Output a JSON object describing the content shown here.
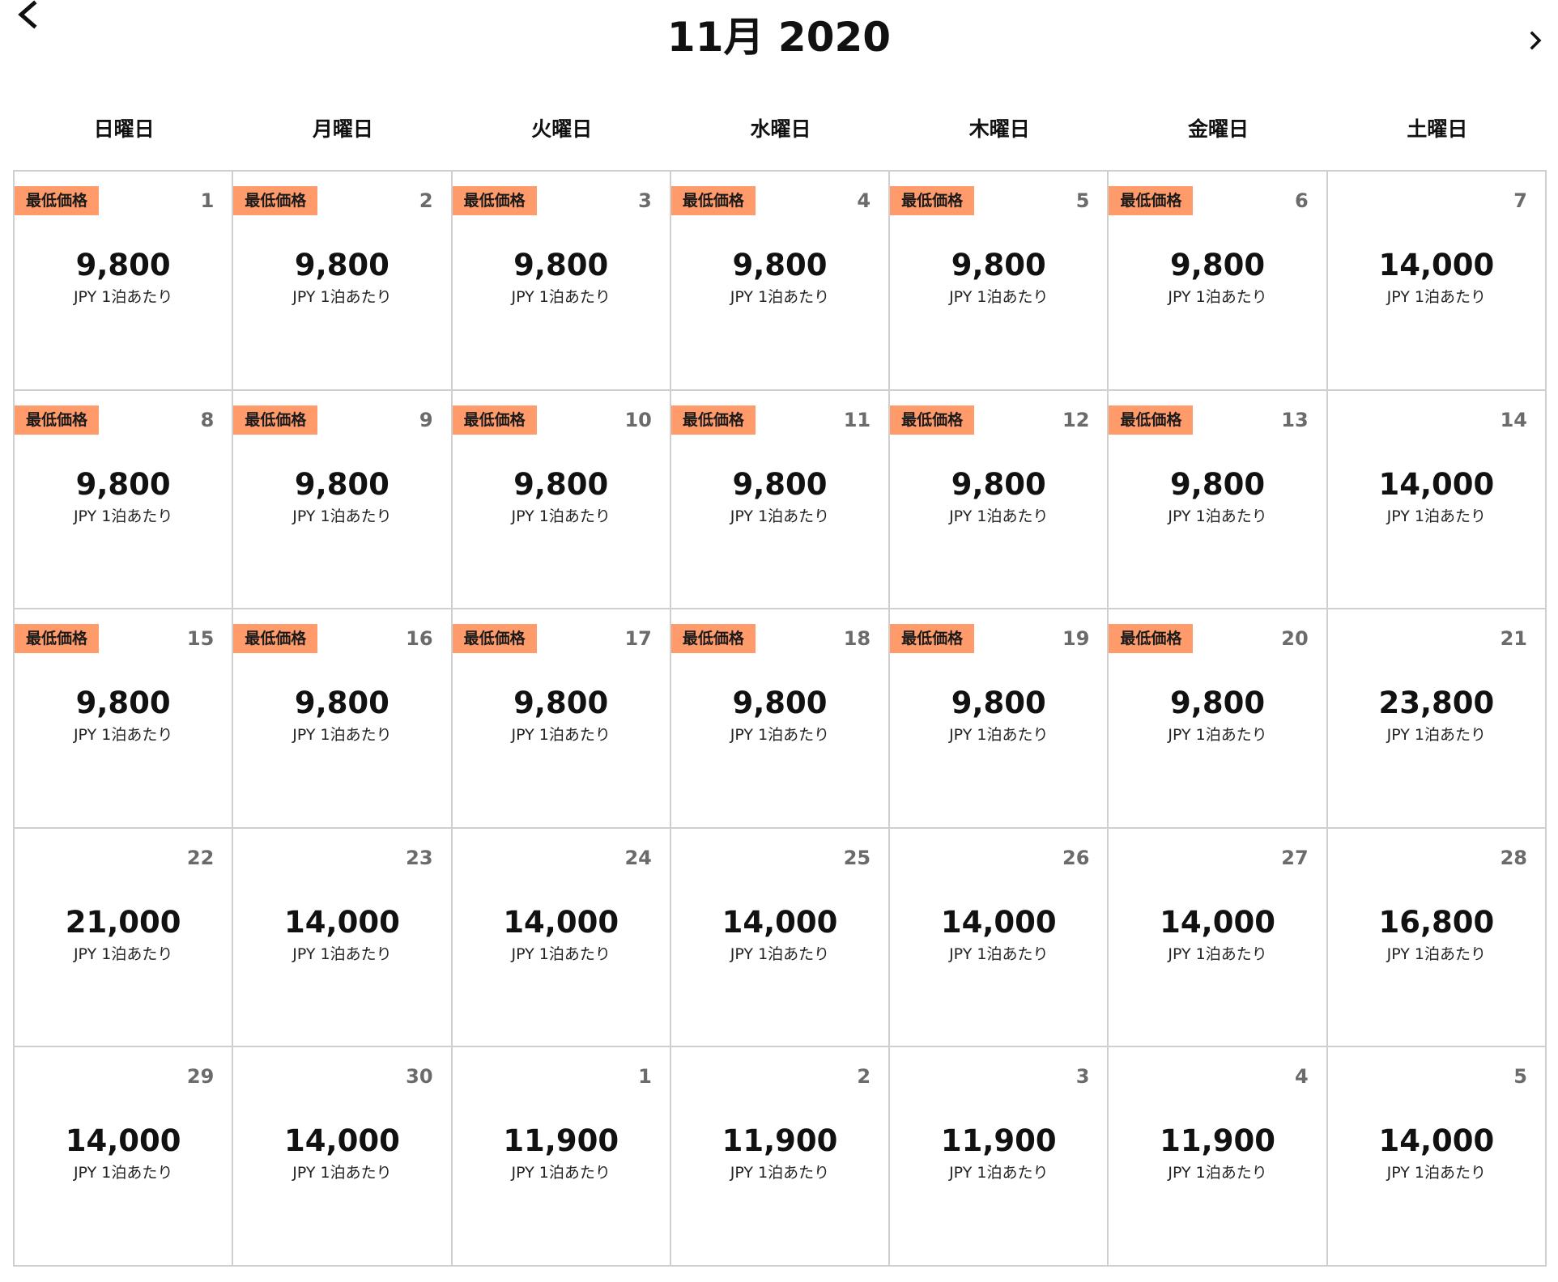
{
  "header": {
    "title": "11月 2020",
    "prev_icon": "chevron-left-icon",
    "next_icon": "chevron-right-icon"
  },
  "weekdays": [
    "日曜日",
    "月曜日",
    "火曜日",
    "水曜日",
    "木曜日",
    "金曜日",
    "土曜日"
  ],
  "colors": {
    "badge_bg": "#ff9a6b",
    "grid_line": "#cfcfcf",
    "day_number": "#6b6b6b"
  },
  "unit_label": "JPY 1泊あたり",
  "badge_label": "最低価格",
  "weeks": [
    [
      {
        "day": "1",
        "price": "9,800",
        "lowest": true
      },
      {
        "day": "2",
        "price": "9,800",
        "lowest": true
      },
      {
        "day": "3",
        "price": "9,800",
        "lowest": true
      },
      {
        "day": "4",
        "price": "9,800",
        "lowest": true
      },
      {
        "day": "5",
        "price": "9,800",
        "lowest": true
      },
      {
        "day": "6",
        "price": "9,800",
        "lowest": true
      },
      {
        "day": "7",
        "price": "14,000",
        "lowest": false
      }
    ],
    [
      {
        "day": "8",
        "price": "9,800",
        "lowest": true
      },
      {
        "day": "9",
        "price": "9,800",
        "lowest": true
      },
      {
        "day": "10",
        "price": "9,800",
        "lowest": true
      },
      {
        "day": "11",
        "price": "9,800",
        "lowest": true
      },
      {
        "day": "12",
        "price": "9,800",
        "lowest": true
      },
      {
        "day": "13",
        "price": "9,800",
        "lowest": true
      },
      {
        "day": "14",
        "price": "14,000",
        "lowest": false
      }
    ],
    [
      {
        "day": "15",
        "price": "9,800",
        "lowest": true
      },
      {
        "day": "16",
        "price": "9,800",
        "lowest": true
      },
      {
        "day": "17",
        "price": "9,800",
        "lowest": true
      },
      {
        "day": "18",
        "price": "9,800",
        "lowest": true
      },
      {
        "day": "19",
        "price": "9,800",
        "lowest": true
      },
      {
        "day": "20",
        "price": "9,800",
        "lowest": true
      },
      {
        "day": "21",
        "price": "23,800",
        "lowest": false
      }
    ],
    [
      {
        "day": "22",
        "price": "21,000",
        "lowest": false
      },
      {
        "day": "23",
        "price": "14,000",
        "lowest": false
      },
      {
        "day": "24",
        "price": "14,000",
        "lowest": false
      },
      {
        "day": "25",
        "price": "14,000",
        "lowest": false
      },
      {
        "day": "26",
        "price": "14,000",
        "lowest": false
      },
      {
        "day": "27",
        "price": "14,000",
        "lowest": false
      },
      {
        "day": "28",
        "price": "16,800",
        "lowest": false
      }
    ],
    [
      {
        "day": "29",
        "price": "14,000",
        "lowest": false
      },
      {
        "day": "30",
        "price": "14,000",
        "lowest": false
      },
      {
        "day": "1",
        "price": "11,900",
        "lowest": false
      },
      {
        "day": "2",
        "price": "11,900",
        "lowest": false
      },
      {
        "day": "3",
        "price": "11,900",
        "lowest": false
      },
      {
        "day": "4",
        "price": "11,900",
        "lowest": false
      },
      {
        "day": "5",
        "price": "14,000",
        "lowest": false
      }
    ]
  ]
}
